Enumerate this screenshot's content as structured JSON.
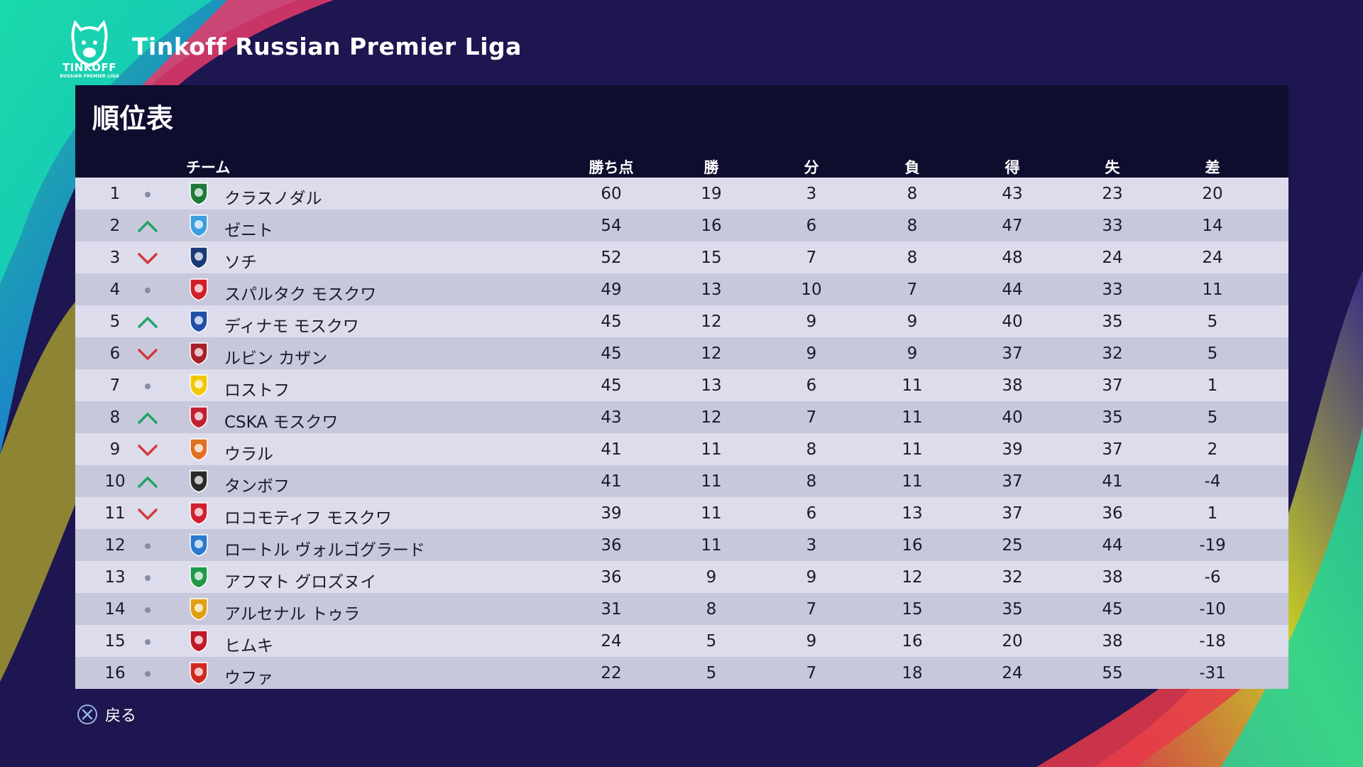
{
  "league": {
    "logo_text": "TINKOFF",
    "logo_sub": "RUSSIAN PREMIER LIGA",
    "title": "Tinkoff Russian Premier Liga"
  },
  "panel": {
    "title": "順位表"
  },
  "headers": {
    "team": "チーム",
    "points": "勝ち点",
    "wins": "勝",
    "draws": "分",
    "losses": "負",
    "goals_for": "得",
    "goals_against": "失",
    "goal_diff": "差"
  },
  "colors": {
    "up": "#1fa566",
    "down": "#d23a3a",
    "same": "#8a8aa0"
  },
  "rows": [
    {
      "rank": "1",
      "trend": "same",
      "team": "クラスノダル",
      "crest": "krasnodar-crest-icon",
      "pts": "60",
      "w": "19",
      "d": "3",
      "l": "8",
      "gf": "43",
      "ga": "23",
      "gd": "20"
    },
    {
      "rank": "2",
      "trend": "up",
      "team": "ゼニト",
      "crest": "zenit-crest-icon",
      "pts": "54",
      "w": "16",
      "d": "6",
      "l": "8",
      "gf": "47",
      "ga": "33",
      "gd": "14"
    },
    {
      "rank": "3",
      "trend": "down",
      "team": "ソチ",
      "crest": "sochi-crest-icon",
      "pts": "52",
      "w": "15",
      "d": "7",
      "l": "8",
      "gf": "48",
      "ga": "24",
      "gd": "24"
    },
    {
      "rank": "4",
      "trend": "same",
      "team": "スパルタク モスクワ",
      "crest": "spartak-crest-icon",
      "pts": "49",
      "w": "13",
      "d": "10",
      "l": "7",
      "gf": "44",
      "ga": "33",
      "gd": "11"
    },
    {
      "rank": "5",
      "trend": "up",
      "team": "ディナモ モスクワ",
      "crest": "dinamo-crest-icon",
      "pts": "45",
      "w": "12",
      "d": "9",
      "l": "9",
      "gf": "40",
      "ga": "35",
      "gd": "5"
    },
    {
      "rank": "6",
      "trend": "down",
      "team": "ルビン カザン",
      "crest": "rubin-crest-icon",
      "pts": "45",
      "w": "12",
      "d": "9",
      "l": "9",
      "gf": "37",
      "ga": "32",
      "gd": "5"
    },
    {
      "rank": "7",
      "trend": "same",
      "team": "ロストフ",
      "crest": "rostov-crest-icon",
      "pts": "45",
      "w": "13",
      "d": "6",
      "l": "11",
      "gf": "38",
      "ga": "37",
      "gd": "1"
    },
    {
      "rank": "8",
      "trend": "up",
      "team": "CSKA モスクワ",
      "crest": "cska-crest-icon",
      "pts": "43",
      "w": "12",
      "d": "7",
      "l": "11",
      "gf": "40",
      "ga": "35",
      "gd": "5"
    },
    {
      "rank": "9",
      "trend": "down",
      "team": "ウラル",
      "crest": "ural-crest-icon",
      "pts": "41",
      "w": "11",
      "d": "8",
      "l": "11",
      "gf": "39",
      "ga": "37",
      "gd": "2"
    },
    {
      "rank": "10",
      "trend": "up",
      "team": "タンボフ",
      "crest": "tambov-crest-icon",
      "pts": "41",
      "w": "11",
      "d": "8",
      "l": "11",
      "gf": "37",
      "ga": "41",
      "gd": "-4"
    },
    {
      "rank": "11",
      "trend": "down",
      "team": "ロコモティフ モスクワ",
      "crest": "lokomotiv-crest-icon",
      "pts": "39",
      "w": "11",
      "d": "6",
      "l": "13",
      "gf": "37",
      "ga": "36",
      "gd": "1"
    },
    {
      "rank": "12",
      "trend": "same",
      "team": "ロートル ヴォルゴグラード",
      "crest": "rotor-crest-icon",
      "pts": "36",
      "w": "11",
      "d": "3",
      "l": "16",
      "gf": "25",
      "ga": "44",
      "gd": "-19"
    },
    {
      "rank": "13",
      "trend": "same",
      "team": "アフマト グロズヌイ",
      "crest": "akhmat-crest-icon",
      "pts": "36",
      "w": "9",
      "d": "9",
      "l": "12",
      "gf": "32",
      "ga": "38",
      "gd": "-6"
    },
    {
      "rank": "14",
      "trend": "same",
      "team": "アルセナル トゥラ",
      "crest": "arsenal-crest-icon",
      "pts": "31",
      "w": "8",
      "d": "7",
      "l": "15",
      "gf": "35",
      "ga": "45",
      "gd": "-10"
    },
    {
      "rank": "15",
      "trend": "same",
      "team": "ヒムキ",
      "crest": "khimki-crest-icon",
      "pts": "24",
      "w": "5",
      "d": "9",
      "l": "16",
      "gf": "20",
      "ga": "38",
      "gd": "-18"
    },
    {
      "rank": "16",
      "trend": "same",
      "team": "ウファ",
      "crest": "ufa-crest-icon",
      "pts": "22",
      "w": "5",
      "d": "7",
      "l": "18",
      "gf": "24",
      "ga": "55",
      "gd": "-31"
    }
  ],
  "footer": {
    "back_icon": "cross-button-icon",
    "back_label": "戻る"
  }
}
